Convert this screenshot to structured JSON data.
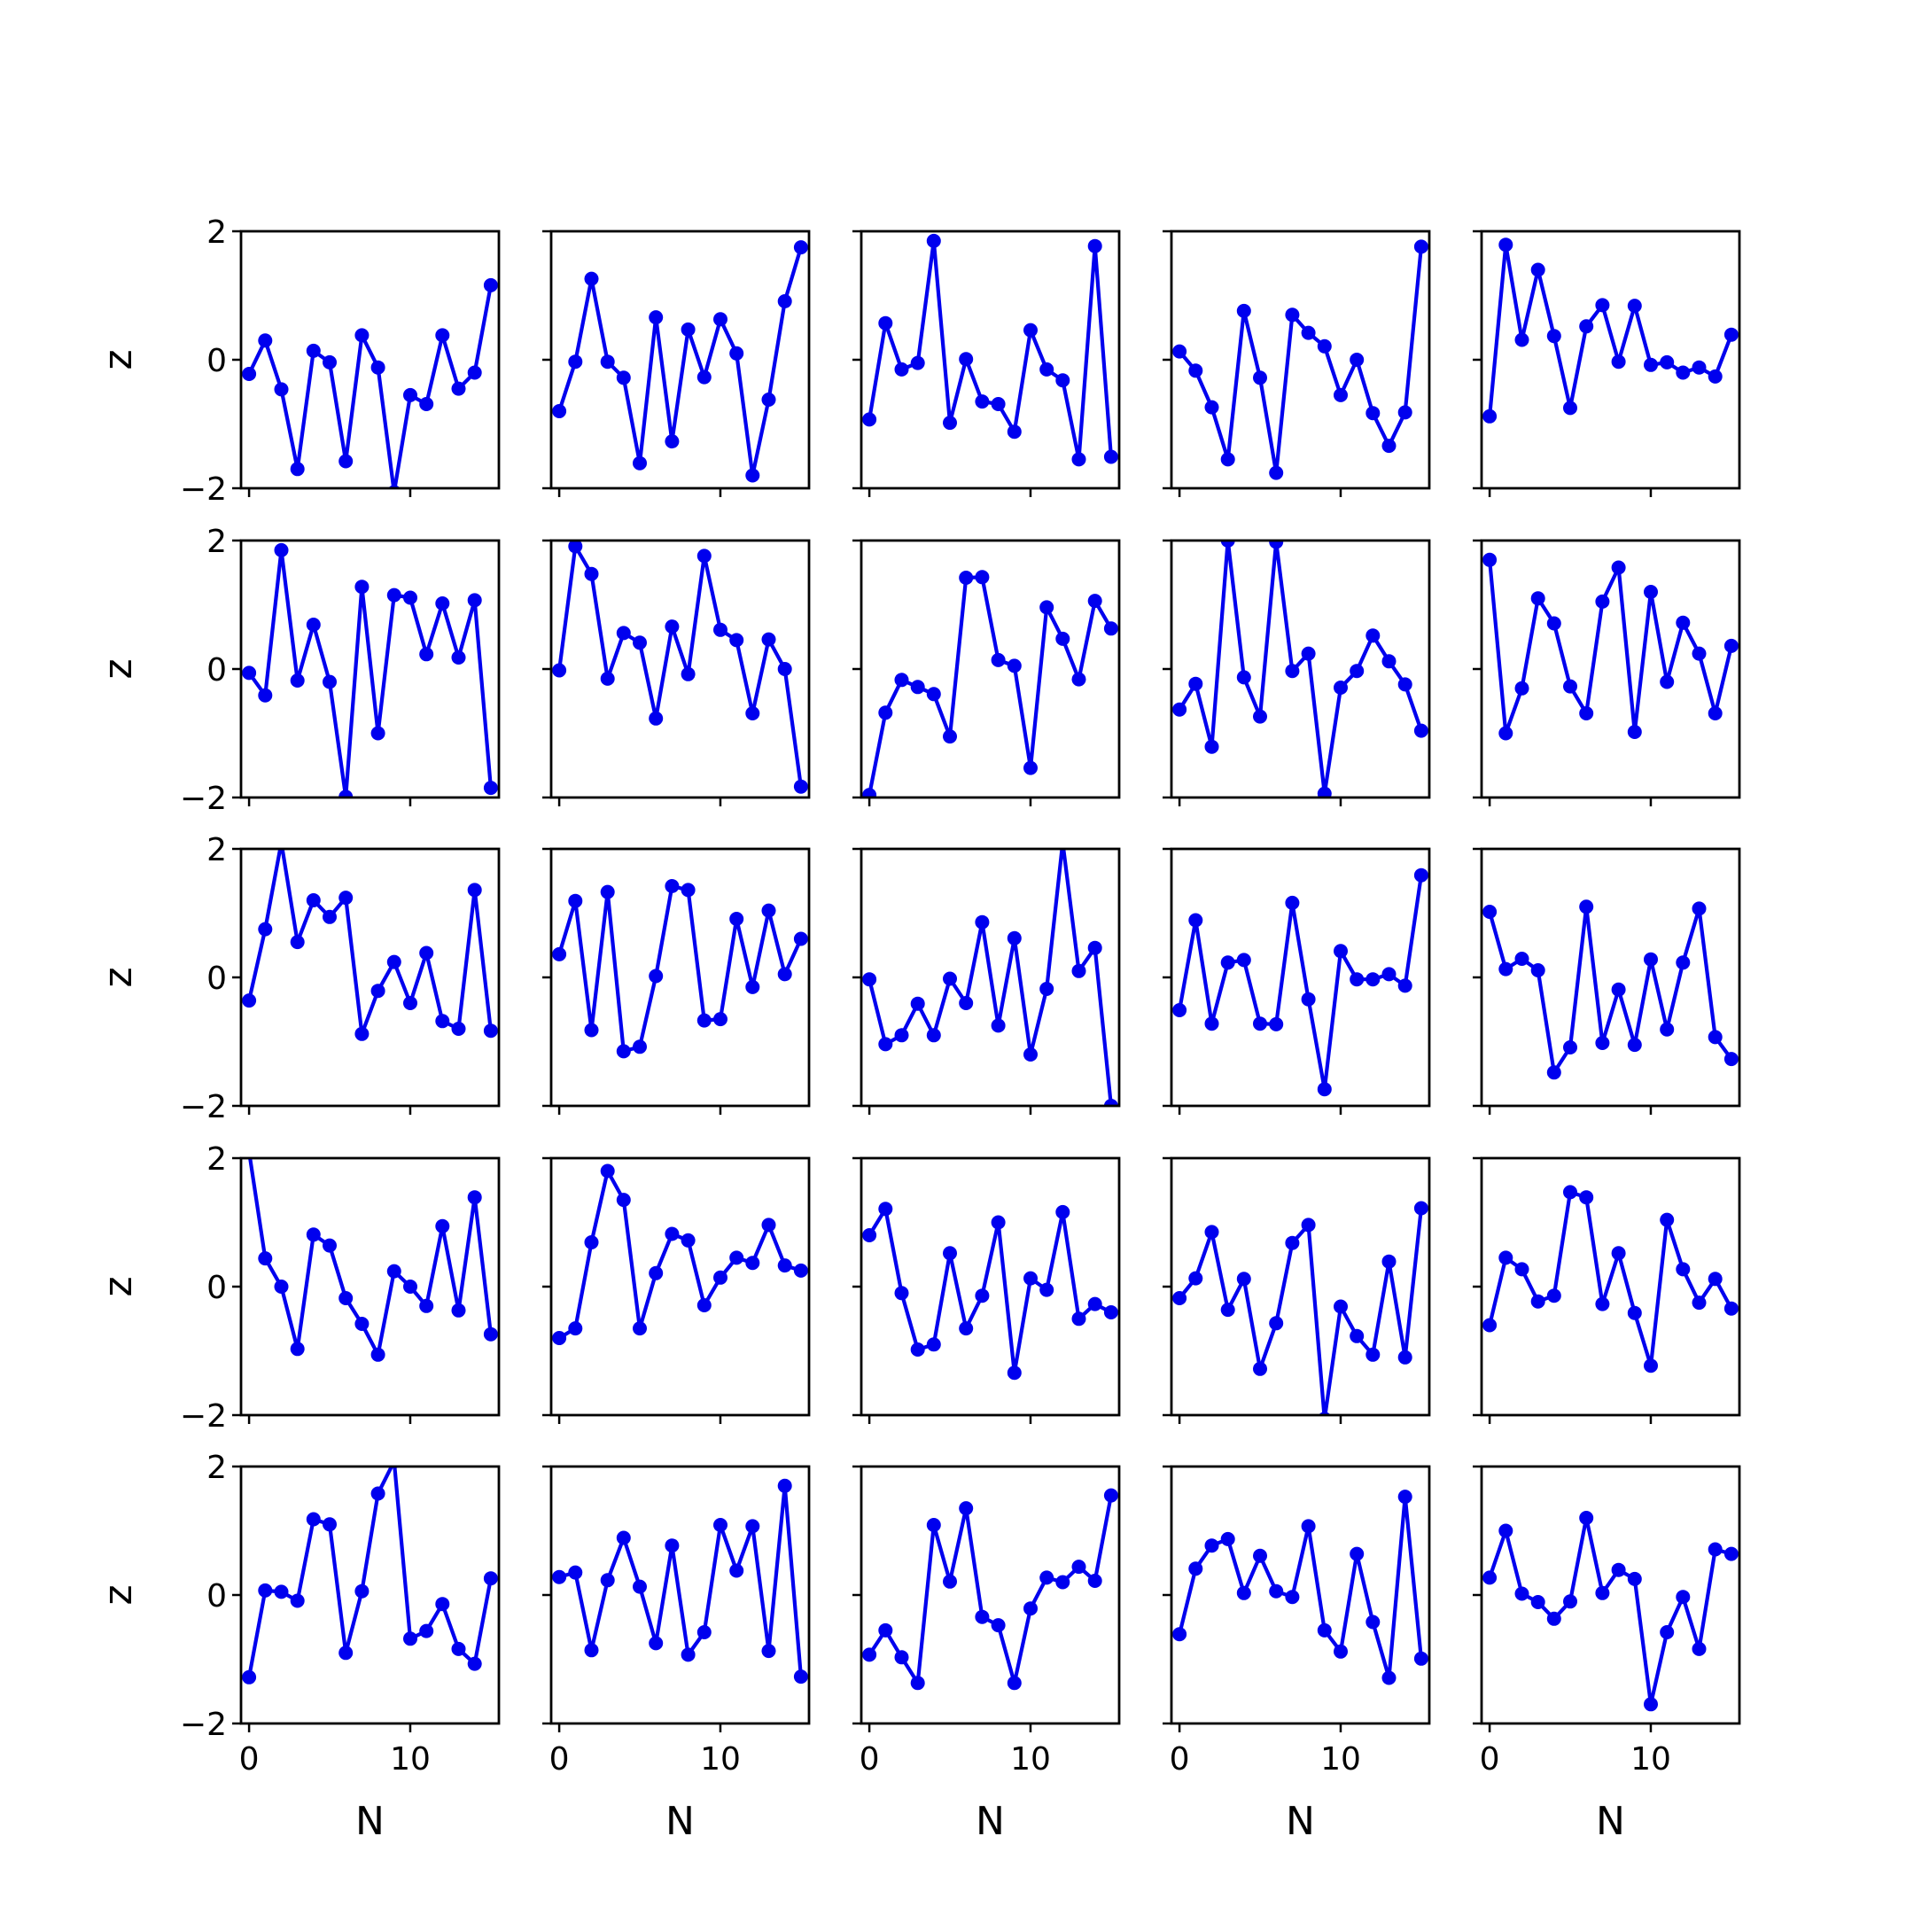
{
  "figure": {
    "line_color": "#0000ee",
    "frame_color": "#000000",
    "background": "#ffffff"
  },
  "chart_data": {
    "type": "line",
    "layout": {
      "rows": 5,
      "cols": 5
    },
    "xlabel": "N",
    "ylabel": "z",
    "xlim": [
      -0.5,
      15.5
    ],
    "ylim": [
      -2,
      2
    ],
    "xticks": [
      0,
      10
    ],
    "yticks": [
      -2,
      0,
      2
    ],
    "x": [
      0,
      1,
      2,
      3,
      4,
      5,
      6,
      7,
      8,
      9,
      10,
      11,
      12,
      13,
      14,
      15
    ],
    "panels": [
      [
        -0.22,
        0.3,
        -0.46,
        -1.7,
        0.14,
        -0.04,
        -1.58,
        0.38,
        -0.12,
        -2.06,
        -0.55,
        -0.69,
        0.38,
        -0.45,
        -0.2,
        1.16
      ],
      [
        -0.8,
        -0.03,
        1.26,
        -0.03,
        -0.28,
        -1.61,
        0.66,
        -1.27,
        0.47,
        -0.27,
        0.63,
        0.1,
        -1.8,
        -0.62,
        0.91,
        1.75
      ],
      [
        -0.93,
        0.57,
        -0.15,
        -0.05,
        1.85,
        -0.98,
        0.01,
        -0.65,
        -0.69,
        -1.12,
        0.46,
        -0.15,
        -0.32,
        -1.55,
        1.77,
        -1.51
      ],
      [
        0.13,
        -0.17,
        -0.74,
        -1.55,
        0.76,
        -0.28,
        -1.76,
        0.7,
        0.42,
        0.21,
        -0.55,
        0.0,
        -0.83,
        -1.34,
        -0.82,
        1.76
      ],
      [
        -0.88,
        1.79,
        0.31,
        1.4,
        0.37,
        -0.75,
        0.52,
        0.85,
        -0.03,
        0.84,
        -0.08,
        -0.04,
        -0.2,
        -0.12,
        -0.26,
        0.39
      ],
      [
        -0.06,
        -0.41,
        1.85,
        -0.18,
        0.69,
        -0.2,
        -1.99,
        1.28,
        -1.0,
        1.15,
        1.11,
        0.23,
        1.02,
        0.18,
        1.07,
        -1.85
      ],
      [
        -0.02,
        1.91,
        1.48,
        -0.15,
        0.56,
        0.41,
        -0.77,
        0.66,
        -0.08,
        1.76,
        0.61,
        0.45,
        -0.69,
        0.46,
        0.0,
        -1.83
      ],
      [
        -1.96,
        -0.68,
        -0.17,
        -0.28,
        -0.39,
        -1.05,
        1.42,
        1.43,
        0.14,
        0.05,
        -1.54,
        0.96,
        0.47,
        -0.16,
        1.06,
        0.63
      ],
      [
        -0.63,
        -0.23,
        -1.21,
        2.0,
        -0.13,
        -0.74,
        1.98,
        -0.03,
        0.24,
        -1.94,
        -0.29,
        -0.03,
        0.52,
        0.12,
        -0.24,
        -0.96
      ],
      [
        1.7,
        -1.0,
        -0.3,
        1.1,
        0.71,
        -0.27,
        -0.69,
        1.05,
        1.58,
        -0.98,
        1.2,
        -0.2,
        0.72,
        0.24,
        -0.69,
        0.36
      ],
      [
        -0.36,
        0.75,
        2.1,
        0.55,
        1.2,
        0.94,
        1.24,
        -0.88,
        -0.21,
        0.24,
        -0.4,
        0.38,
        -0.68,
        -0.8,
        1.36,
        -0.83
      ],
      [
        0.36,
        1.19,
        -0.82,
        1.33,
        -1.15,
        -1.08,
        0.02,
        1.42,
        1.36,
        -0.67,
        -0.65,
        0.91,
        -0.15,
        1.04,
        0.05,
        0.6
      ],
      [
        -0.03,
        -1.04,
        -0.9,
        -0.41,
        -0.9,
        -0.02,
        -0.4,
        0.86,
        -0.75,
        0.61,
        -1.2,
        -0.18,
        2.1,
        0.1,
        0.46,
        -2.0
      ],
      [
        -0.51,
        0.89,
        -0.72,
        0.23,
        0.27,
        -0.72,
        -0.73,
        1.16,
        -0.34,
        -1.74,
        0.41,
        -0.03,
        -0.03,
        0.05,
        -0.13,
        1.59
      ],
      [
        1.02,
        0.13,
        0.29,
        0.11,
        -1.48,
        -1.09,
        1.1,
        -1.02,
        -0.19,
        -1.05,
        0.28,
        -0.81,
        0.23,
        1.07,
        -0.93,
        -1.27
      ],
      [
        2.1,
        0.44,
        0.0,
        -0.97,
        0.81,
        0.64,
        -0.18,
        -0.58,
        -1.06,
        0.24,
        0.0,
        -0.3,
        0.94,
        -0.37,
        1.39,
        -0.74
      ],
      [
        -0.8,
        -0.65,
        0.69,
        1.8,
        1.35,
        -0.65,
        0.21,
        0.82,
        0.72,
        -0.29,
        0.14,
        0.45,
        0.37,
        0.96,
        0.33,
        0.25
      ],
      [
        0.8,
        1.21,
        -0.1,
        -0.98,
        -0.9,
        0.52,
        -0.65,
        -0.14,
        1.0,
        -1.34,
        0.13,
        -0.05,
        1.16,
        -0.5,
        -0.27,
        -0.4
      ],
      [
        -0.18,
        0.13,
        0.85,
        -0.36,
        0.12,
        -1.28,
        -0.57,
        0.68,
        0.96,
        -2.06,
        -0.31,
        -0.77,
        -1.06,
        0.39,
        -1.1,
        1.22
      ],
      [
        -0.6,
        0.45,
        0.27,
        -0.23,
        -0.14,
        1.47,
        1.39,
        -0.27,
        0.52,
        -0.41,
        -1.23,
        1.04,
        0.27,
        -0.25,
        0.12,
        -0.34
      ],
      [
        -1.28,
        0.07,
        0.05,
        -0.09,
        1.18,
        1.1,
        -0.9,
        0.06,
        1.58,
        2.08,
        -0.68,
        -0.56,
        -0.14,
        -0.84,
        -1.07,
        0.26
      ],
      [
        0.28,
        0.35,
        -0.86,
        0.23,
        0.89,
        0.13,
        -0.75,
        0.77,
        -0.93,
        -0.58,
        1.09,
        0.38,
        1.07,
        -0.87,
        1.7,
        -1.27
      ],
      [
        -0.93,
        -0.55,
        -0.97,
        -1.37,
        1.09,
        0.21,
        1.35,
        -0.34,
        -0.47,
        -1.37,
        -0.21,
        0.27,
        0.2,
        0.44,
        0.22,
        1.55
      ],
      [
        -0.61,
        0.41,
        0.77,
        0.87,
        0.03,
        0.61,
        0.06,
        -0.03,
        1.07,
        -0.55,
        -0.88,
        0.64,
        -0.42,
        -1.29,
        1.53,
        -0.99
      ],
      [
        0.27,
        1.0,
        0.02,
        -0.11,
        -0.37,
        -0.1,
        1.2,
        0.03,
        0.39,
        0.25,
        -1.7,
        -0.58,
        -0.03,
        -0.84,
        0.71,
        0.64
      ]
    ]
  }
}
